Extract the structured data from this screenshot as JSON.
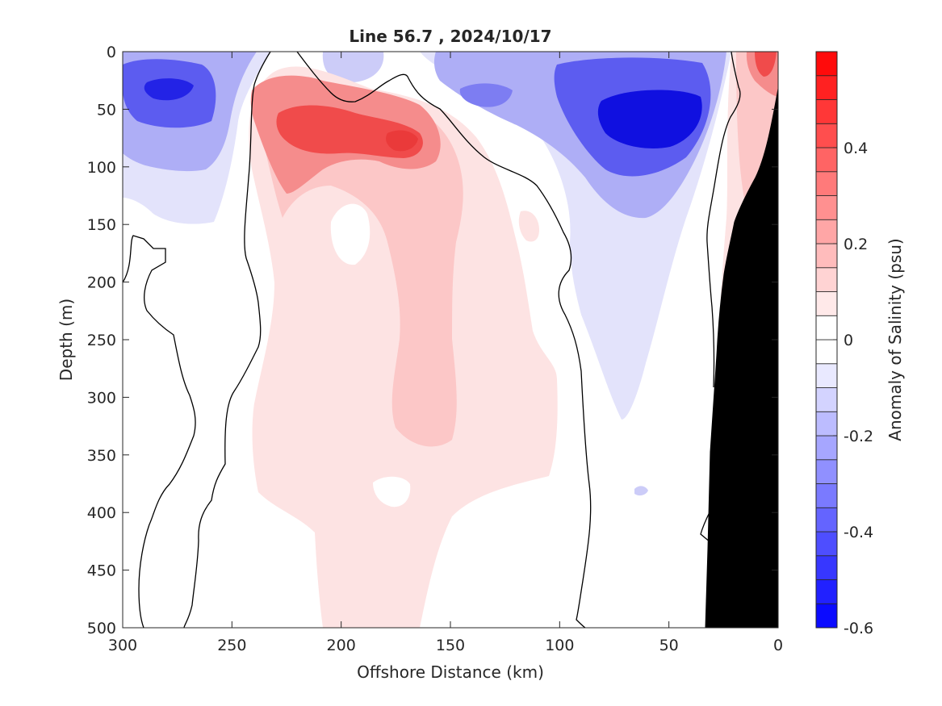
{
  "chart_data": {
    "type": "heatmap",
    "subtype": "filled-contour-section",
    "title": "Line 56.7 , 2024/10/17",
    "xlabel": "Offshore Distance (km)",
    "ylabel": "Depth (m)",
    "colorbar_label": "Anomaly of Salinity (psu)",
    "x_reversed": true,
    "y_reversed": true,
    "xlim": [
      0,
      300
    ],
    "ylim": [
      0,
      500
    ],
    "x_ticks": [
      "300",
      "250",
      "200",
      "150",
      "100",
      "50",
      "0"
    ],
    "y_ticks": [
      "0",
      "50",
      "100",
      "150",
      "200",
      "250",
      "300",
      "350",
      "400",
      "450",
      "500"
    ],
    "colorbar": {
      "range": [
        -0.6,
        0.6
      ],
      "step": 0.05,
      "ticks": [
        "0.4",
        "0.2",
        "0",
        "-0.2",
        "-0.4",
        "-0.6"
      ],
      "negative_color": "#0000ff",
      "positive_color": "#ff0000",
      "zero_color": "#ffffff"
    },
    "zero_contour_color": "#000000",
    "bathymetry_color": "#000000",
    "features": [
      {
        "x": 278,
        "y": 38,
        "value": -0.45
      },
      {
        "x": 200,
        "y": 20,
        "value": -0.15
      },
      {
        "x": 135,
        "y": 40,
        "value": -0.3
      },
      {
        "x": 55,
        "y": 55,
        "value": -0.55
      },
      {
        "x": 215,
        "y": 80,
        "value": 0.35
      },
      {
        "x": 170,
        "y": 80,
        "value": 0.4
      },
      {
        "x": 150,
        "y": 320,
        "value": 0.12
      },
      {
        "x": 10,
        "y": 25,
        "value": 0.35
      },
      {
        "x": 75,
        "y": 280,
        "value": -0.08
      }
    ]
  }
}
